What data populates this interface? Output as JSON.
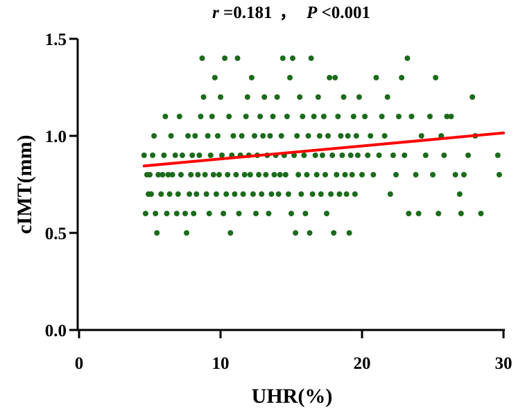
{
  "chart_data": {
    "type": "scatter",
    "title_parts": {
      "r_symbol": "r",
      "r_value": "=0.181",
      "separator": "，",
      "p_symbol": "P",
      "p_value": "<0.001"
    },
    "xlabel": "UHR(%)",
    "ylabel": "cIMT(mm)",
    "xlim": [
      0,
      30
    ],
    "ylim": [
      0,
      1.5
    ],
    "xticks": [
      0,
      10,
      20,
      30
    ],
    "xtick_labels": [
      "0",
      "10",
      "20",
      "30"
    ],
    "yticks": [
      0,
      0.5,
      1.0,
      1.5
    ],
    "ytick_labels": [
      "0.0",
      "0.5",
      "1.0",
      "1.5"
    ],
    "grid": false,
    "point_color": "#1b6b1b",
    "line_color": "#ff0000",
    "regression_line": {
      "x": [
        4.6,
        30
      ],
      "y": [
        0.845,
        1.015
      ]
    },
    "points": [
      [
        4.6,
        0.9
      ],
      [
        4.7,
        0.6
      ],
      [
        4.8,
        0.8
      ],
      [
        4.9,
        0.7
      ],
      [
        5.0,
        0.8
      ],
      [
        5.1,
        0.7
      ],
      [
        5.2,
        0.9
      ],
      [
        5.3,
        1.0
      ],
      [
        5.4,
        0.6
      ],
      [
        5.5,
        0.5
      ],
      [
        5.6,
        0.8
      ],
      [
        5.8,
        0.7
      ],
      [
        5.9,
        0.8
      ],
      [
        6.0,
        0.9
      ],
      [
        6.1,
        1.1
      ],
      [
        6.2,
        0.6
      ],
      [
        6.3,
        0.8
      ],
      [
        6.4,
        0.7
      ],
      [
        6.5,
        1.0
      ],
      [
        6.6,
        0.8
      ],
      [
        6.8,
        0.9
      ],
      [
        6.9,
        0.6
      ],
      [
        7.0,
        0.7
      ],
      [
        7.1,
        1.1
      ],
      [
        7.2,
        0.8
      ],
      [
        7.3,
        0.9
      ],
      [
        7.5,
        0.6
      ],
      [
        7.6,
        0.5
      ],
      [
        7.7,
        1.0
      ],
      [
        7.8,
        0.7
      ],
      [
        7.9,
        0.8
      ],
      [
        8.0,
        0.9
      ],
      [
        8.1,
        0.6
      ],
      [
        8.2,
        1.0
      ],
      [
        8.3,
        0.7
      ],
      [
        8.4,
        0.8
      ],
      [
        8.5,
        0.9
      ],
      [
        8.6,
        1.1
      ],
      [
        8.7,
        1.4
      ],
      [
        8.8,
        1.2
      ],
      [
        8.9,
        0.8
      ],
      [
        9.0,
        0.7
      ],
      [
        9.1,
        1.0
      ],
      [
        9.2,
        0.6
      ],
      [
        9.3,
        0.9
      ],
      [
        9.4,
        1.1
      ],
      [
        9.5,
        0.8
      ],
      [
        9.6,
        1.3
      ],
      [
        9.7,
        0.7
      ],
      [
        9.8,
        1.0
      ],
      [
        9.9,
        0.8
      ],
      [
        10.0,
        1.2
      ],
      [
        10.1,
        0.9
      ],
      [
        10.2,
        0.6
      ],
      [
        10.3,
        1.4
      ],
      [
        10.4,
        0.7
      ],
      [
        10.5,
        0.8
      ],
      [
        10.6,
        1.1
      ],
      [
        10.7,
        0.5
      ],
      [
        10.8,
        0.9
      ],
      [
        10.9,
        1.0
      ],
      [
        11.0,
        0.7
      ],
      [
        11.1,
        0.8
      ],
      [
        11.2,
        1.4
      ],
      [
        11.3,
        0.6
      ],
      [
        11.4,
        0.9
      ],
      [
        11.5,
        1.0
      ],
      [
        11.6,
        0.7
      ],
      [
        11.7,
        0.8
      ],
      [
        11.8,
        1.1
      ],
      [
        11.9,
        1.2
      ],
      [
        12.0,
        0.9
      ],
      [
        12.1,
        0.8
      ],
      [
        12.2,
        1.3
      ],
      [
        12.3,
        0.7
      ],
      [
        12.4,
        1.0
      ],
      [
        12.5,
        0.6
      ],
      [
        12.6,
        0.9
      ],
      [
        12.7,
        0.8
      ],
      [
        12.8,
        1.1
      ],
      [
        12.9,
        0.7
      ],
      [
        13.0,
        1.0
      ],
      [
        13.1,
        1.2
      ],
      [
        13.2,
        0.8
      ],
      [
        13.3,
        0.9
      ],
      [
        13.4,
        0.6
      ],
      [
        13.5,
        1.0
      ],
      [
        13.6,
        0.7
      ],
      [
        13.7,
        1.1
      ],
      [
        13.8,
        0.8
      ],
      [
        13.9,
        0.9
      ],
      [
        14.0,
        1.2
      ],
      [
        14.1,
        0.7
      ],
      [
        14.2,
        0.8
      ],
      [
        14.3,
        1.0
      ],
      [
        14.4,
        1.4
      ],
      [
        14.5,
        0.9
      ],
      [
        14.6,
        0.8
      ],
      [
        14.7,
        1.1
      ],
      [
        14.8,
        0.7
      ],
      [
        14.9,
        1.3
      ],
      [
        15.0,
        0.6
      ],
      [
        15.1,
        1.4
      ],
      [
        15.2,
        0.9
      ],
      [
        15.3,
        0.5
      ],
      [
        15.4,
        1.0
      ],
      [
        15.5,
        0.8
      ],
      [
        15.6,
        1.2
      ],
      [
        15.7,
        0.7
      ],
      [
        15.8,
        1.1
      ],
      [
        15.9,
        0.9
      ],
      [
        16.0,
        0.6
      ],
      [
        16.1,
        0.8
      ],
      [
        16.2,
        1.0
      ],
      [
        16.3,
        0.5
      ],
      [
        16.4,
        1.4
      ],
      [
        16.5,
        0.7
      ],
      [
        16.6,
        1.1
      ],
      [
        16.7,
        0.9
      ],
      [
        16.8,
        0.8
      ],
      [
        16.9,
        1.2
      ],
      [
        17.0,
        1.0
      ],
      [
        17.1,
        0.7
      ],
      [
        17.2,
        0.9
      ],
      [
        17.3,
        1.1
      ],
      [
        17.4,
        0.8
      ],
      [
        17.5,
        0.6
      ],
      [
        17.6,
        1.0
      ],
      [
        17.7,
        1.3
      ],
      [
        17.8,
        0.7
      ],
      [
        17.9,
        0.9
      ],
      [
        18.0,
        0.5
      ],
      [
        18.1,
        1.3
      ],
      [
        18.2,
        0.8
      ],
      [
        18.3,
        1.1
      ],
      [
        18.4,
        0.7
      ],
      [
        18.5,
        1.0
      ],
      [
        18.6,
        0.9
      ],
      [
        18.7,
        1.2
      ],
      [
        18.8,
        0.8
      ],
      [
        18.9,
        0.7
      ],
      [
        19.0,
        1.0
      ],
      [
        19.1,
        0.5
      ],
      [
        19.2,
        0.9
      ],
      [
        19.3,
        0.8
      ],
      [
        19.4,
        1.1
      ],
      [
        19.5,
        0.7
      ],
      [
        19.6,
        1.0
      ],
      [
        19.7,
        0.9
      ],
      [
        19.8,
        1.2
      ],
      [
        20.0,
        0.8
      ],
      [
        20.2,
        1.1
      ],
      [
        20.4,
        0.9
      ],
      [
        20.6,
        1.0
      ],
      [
        20.8,
        0.8
      ],
      [
        21.0,
        1.3
      ],
      [
        21.2,
        0.9
      ],
      [
        21.4,
        1.1
      ],
      [
        21.6,
        1.0
      ],
      [
        21.8,
        1.2
      ],
      [
        22.0,
        0.7
      ],
      [
        22.2,
        0.9
      ],
      [
        22.4,
        0.8
      ],
      [
        22.6,
        1.1
      ],
      [
        22.8,
        1.3
      ],
      [
        23.0,
        0.9
      ],
      [
        23.2,
        1.4
      ],
      [
        23.3,
        0.6
      ],
      [
        23.5,
        1.1
      ],
      [
        23.8,
        0.8
      ],
      [
        24.0,
        0.6
      ],
      [
        24.2,
        1.0
      ],
      [
        24.5,
        0.9
      ],
      [
        24.8,
        1.1
      ],
      [
        25.0,
        0.8
      ],
      [
        25.2,
        1.3
      ],
      [
        25.4,
        0.6
      ],
      [
        25.6,
        1.0
      ],
      [
        25.8,
        0.9
      ],
      [
        26.0,
        1.1
      ],
      [
        26.3,
        1.1
      ],
      [
        26.6,
        0.8
      ],
      [
        26.9,
        0.7
      ],
      [
        27.0,
        0.6
      ],
      [
        27.2,
        0.8
      ],
      [
        27.5,
        0.9
      ],
      [
        27.8,
        1.2
      ],
      [
        28.0,
        1.0
      ],
      [
        28.4,
        0.6
      ],
      [
        29.6,
        0.9
      ],
      [
        29.7,
        0.8
      ]
    ]
  }
}
